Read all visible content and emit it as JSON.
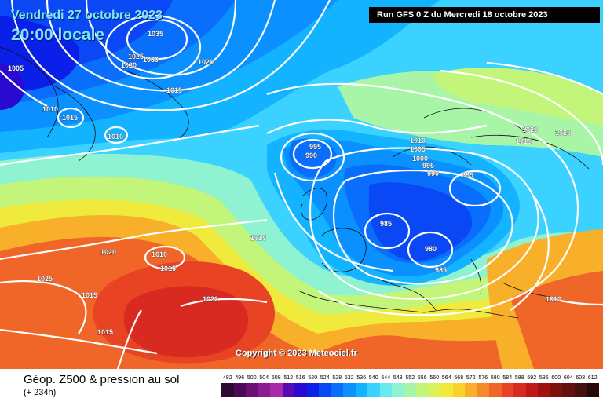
{
  "header": {
    "date": "Vendredi 27 octobre 2023",
    "time": "20:00 locale",
    "run": "Run GFS 0 Z du Mercredi 18 octobre 2023"
  },
  "footer": {
    "title": "Géop. Z500 & pression au sol",
    "subtitle": "(+ 234h)",
    "copyright": "Copyright © 2023 Meteociel.fr"
  },
  "scale": {
    "values": [
      "492",
      "496",
      "500",
      "504",
      "508",
      "512",
      "516",
      "520",
      "524",
      "528",
      "532",
      "536",
      "540",
      "544",
      "548",
      "552",
      "556",
      "560",
      "564",
      "568",
      "572",
      "576",
      "580",
      "584",
      "588",
      "592",
      "596",
      "600",
      "604",
      "608",
      "612"
    ],
    "colors": [
      "#2d0a31",
      "#4c0a55",
      "#6b0f74",
      "#8a1c8f",
      "#a82aa8",
      "#5a0ab0",
      "#2a0ad0",
      "#0a1fe8",
      "#0a47f5",
      "#0a6efc",
      "#0a90ff",
      "#14b3ff",
      "#3cd2ff",
      "#6ae8f0",
      "#8ff2d0",
      "#a8f5a8",
      "#c3f57a",
      "#dcf25a",
      "#f0ea3c",
      "#fad22a",
      "#f8b02a",
      "#f58a28",
      "#f06628",
      "#e84424",
      "#d82a20",
      "#c01818",
      "#a01010",
      "#80100e",
      "#621010",
      "#441010",
      "#260808"
    ]
  },
  "isobars": [
    {
      "value": "1035"
    },
    {
      "value": "1030"
    },
    {
      "value": "1025"
    },
    {
      "value": "1020"
    },
    {
      "value": "1020"
    },
    {
      "value": "1005"
    },
    {
      "value": "1015"
    },
    {
      "value": "1010"
    },
    {
      "value": "1015"
    },
    {
      "value": "1010"
    },
    {
      "value": "995"
    },
    {
      "value": "990"
    },
    {
      "value": "1010"
    },
    {
      "value": "1005"
    },
    {
      "value": "1000"
    },
    {
      "value": "995"
    },
    {
      "value": "990"
    },
    {
      "value": "985"
    },
    {
      "value": "1020"
    },
    {
      "value": "1015"
    },
    {
      "value": "1025"
    },
    {
      "value": "985"
    },
    {
      "value": "980"
    },
    {
      "value": "985"
    },
    {
      "value": "1020"
    },
    {
      "value": "1010"
    },
    {
      "value": "1015"
    },
    {
      "value": "1025"
    },
    {
      "value": "1015"
    },
    {
      "value": "1020"
    },
    {
      "value": "1015"
    },
    {
      "value": "1015"
    },
    {
      "value": "1010"
    }
  ]
}
